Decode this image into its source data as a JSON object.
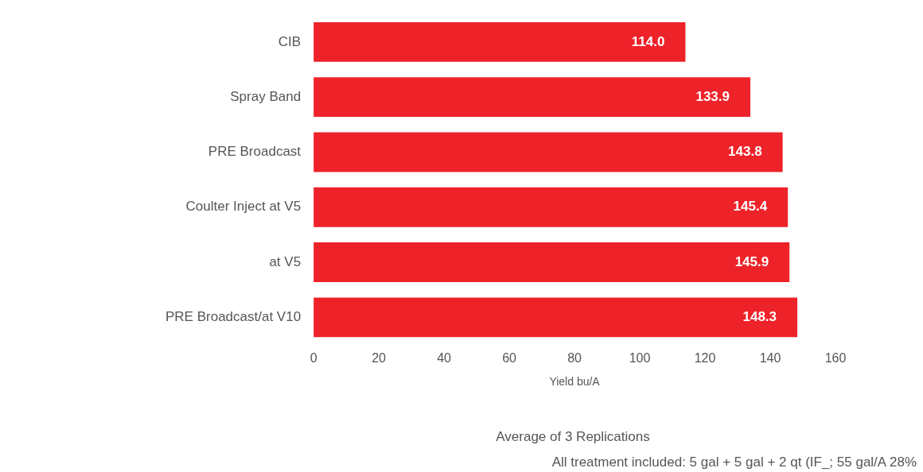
{
  "chart_data": {
    "type": "bar",
    "orientation": "horizontal",
    "categories": [
      "CIB",
      "Spray Band",
      "PRE Broadcast",
      "Coulter Inject at V5",
      "at V5",
      "PRE Broadcast/at V10"
    ],
    "values": [
      114.0,
      133.9,
      143.8,
      145.4,
      145.9,
      148.3
    ],
    "color": "#ee2229",
    "xlim": [
      0,
      160
    ],
    "xticks": [
      0,
      20,
      40,
      60,
      80,
      100,
      120,
      140,
      160
    ],
    "xlabel": "Yield bu/A",
    "value_labels": [
      "114.0",
      "133.9",
      "143.8",
      "145.4",
      "145.9",
      "148.3"
    ],
    "annotations": [
      "Average of 3 Replications",
      "All treatment included: 5 gal + 5 gal + 2 qt (IF_; 55 gal/A 28%"
    ]
  }
}
